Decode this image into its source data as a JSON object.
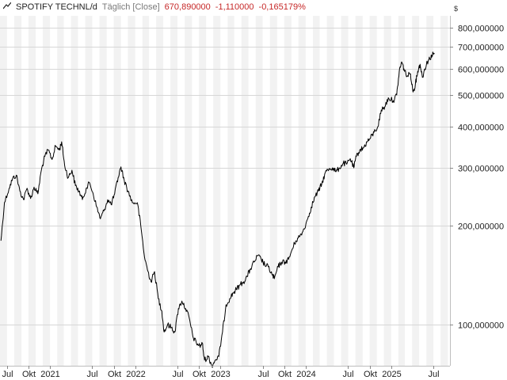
{
  "header": {
    "icon": "line-chart-icon",
    "symbol": "SPOTIFY TECHNL/d",
    "mode": "Täglich [Close]",
    "last": "670,890000",
    "change": "-1,110000",
    "change_pct": "-0,165179%",
    "change_color": "#c62828"
  },
  "chart_data": {
    "type": "line",
    "y_scale": "log",
    "currency": "$",
    "ylim": [
      75,
      870
    ],
    "xlim": [
      "2020-06-01",
      "2025-09-10"
    ],
    "grid": true,
    "line_color": "#000000",
    "y_ticks": [
      {
        "value": 100,
        "label": "100,000000"
      },
      {
        "value": 200,
        "label": "200,000000"
      },
      {
        "value": 300,
        "label": "300,000000"
      },
      {
        "value": 400,
        "label": "400,000000"
      },
      {
        "value": 500,
        "label": "500,000000"
      },
      {
        "value": 600,
        "label": "600,000000"
      },
      {
        "value": 700,
        "label": "700,000000"
      },
      {
        "value": 800,
        "label": "800,000000"
      }
    ],
    "x_ticks": [
      {
        "date": "2020-07-01",
        "label": "Jul"
      },
      {
        "date": "2020-10-01",
        "label": "Okt"
      },
      {
        "date": "2021-01-01",
        "label": "2021"
      },
      {
        "date": "2021-07-01",
        "label": "Jul"
      },
      {
        "date": "2021-10-01",
        "label": "Okt"
      },
      {
        "date": "2022-01-01",
        "label": "2022"
      },
      {
        "date": "2022-07-01",
        "label": "Jul"
      },
      {
        "date": "2022-10-01",
        "label": "Okt"
      },
      {
        "date": "2023-01-01",
        "label": "2023"
      },
      {
        "date": "2023-07-01",
        "label": "Jul"
      },
      {
        "date": "2023-10-01",
        "label": "Okt"
      },
      {
        "date": "2024-01-01",
        "label": "2024"
      },
      {
        "date": "2024-07-01",
        "label": "Jul"
      },
      {
        "date": "2024-10-01",
        "label": "Okt"
      },
      {
        "date": "2025-01-01",
        "label": "2025"
      },
      {
        "date": "2025-07-01",
        "label": "Jul"
      }
    ],
    "series": [
      {
        "values": [
          [
            "2020-06-05",
            180
          ],
          [
            "2020-06-20",
            235
          ],
          [
            "2020-07-10",
            260
          ],
          [
            "2020-07-25",
            278
          ],
          [
            "2020-08-10",
            285
          ],
          [
            "2020-08-25",
            255
          ],
          [
            "2020-09-10",
            240
          ],
          [
            "2020-09-25",
            260
          ],
          [
            "2020-10-10",
            242
          ],
          [
            "2020-10-25",
            262
          ],
          [
            "2020-11-10",
            250
          ],
          [
            "2020-11-25",
            295
          ],
          [
            "2020-12-10",
            325
          ],
          [
            "2020-12-25",
            340
          ],
          [
            "2021-01-10",
            318
          ],
          [
            "2021-01-25",
            350
          ],
          [
            "2021-02-10",
            340
          ],
          [
            "2021-02-20",
            360
          ],
          [
            "2021-03-05",
            305
          ],
          [
            "2021-03-20",
            280
          ],
          [
            "2021-04-05",
            295
          ],
          [
            "2021-04-20",
            265
          ],
          [
            "2021-05-05",
            255
          ],
          [
            "2021-05-20",
            240
          ],
          [
            "2021-06-05",
            260
          ],
          [
            "2021-06-20",
            270
          ],
          [
            "2021-07-05",
            250
          ],
          [
            "2021-07-20",
            228
          ],
          [
            "2021-08-05",
            210
          ],
          [
            "2021-08-20",
            222
          ],
          [
            "2021-09-05",
            240
          ],
          [
            "2021-09-20",
            232
          ],
          [
            "2021-10-05",
            250
          ],
          [
            "2021-10-20",
            280
          ],
          [
            "2021-11-01",
            302
          ],
          [
            "2021-11-15",
            275
          ],
          [
            "2021-12-01",
            255
          ],
          [
            "2021-12-20",
            235
          ],
          [
            "2022-01-10",
            235
          ],
          [
            "2022-01-25",
            200
          ],
          [
            "2022-02-10",
            160
          ],
          [
            "2022-02-25",
            145
          ],
          [
            "2022-03-10",
            135
          ],
          [
            "2022-03-25",
            145
          ],
          [
            "2022-04-10",
            120
          ],
          [
            "2022-04-25",
            110
          ],
          [
            "2022-05-05",
            95
          ],
          [
            "2022-05-20",
            100
          ],
          [
            "2022-06-05",
            98
          ],
          [
            "2022-06-20",
            95
          ],
          [
            "2022-07-05",
            112
          ],
          [
            "2022-07-20",
            118
          ],
          [
            "2022-08-05",
            112
          ],
          [
            "2022-08-20",
            105
          ],
          [
            "2022-09-05",
            92
          ],
          [
            "2022-09-20",
            88
          ],
          [
            "2022-10-05",
            86
          ],
          [
            "2022-10-15",
            88
          ],
          [
            "2022-10-25",
            78
          ],
          [
            "2022-11-10",
            80
          ],
          [
            "2022-11-25",
            75
          ],
          [
            "2022-12-10",
            78
          ],
          [
            "2022-12-25",
            80
          ],
          [
            "2023-01-10",
            95
          ],
          [
            "2023-01-25",
            115
          ],
          [
            "2023-02-10",
            120
          ],
          [
            "2023-02-25",
            125
          ],
          [
            "2023-03-10",
            128
          ],
          [
            "2023-03-25",
            132
          ],
          [
            "2023-04-10",
            135
          ],
          [
            "2023-04-25",
            140
          ],
          [
            "2023-05-10",
            148
          ],
          [
            "2023-05-25",
            155
          ],
          [
            "2023-06-10",
            162
          ],
          [
            "2023-06-25",
            158
          ],
          [
            "2023-07-10",
            152
          ],
          [
            "2023-07-25",
            150
          ],
          [
            "2023-08-10",
            142
          ],
          [
            "2023-08-20",
            138
          ],
          [
            "2023-09-05",
            150
          ],
          [
            "2023-09-20",
            155
          ],
          [
            "2023-10-05",
            155
          ],
          [
            "2023-10-20",
            158
          ],
          [
            "2023-11-05",
            170
          ],
          [
            "2023-11-20",
            180
          ],
          [
            "2023-12-05",
            185
          ],
          [
            "2023-12-20",
            192
          ],
          [
            "2024-01-10",
            210
          ],
          [
            "2024-01-25",
            228
          ],
          [
            "2024-02-10",
            245
          ],
          [
            "2024-02-25",
            255
          ],
          [
            "2024-03-10",
            268
          ],
          [
            "2024-03-25",
            290
          ],
          [
            "2024-04-10",
            298
          ],
          [
            "2024-04-25",
            300
          ],
          [
            "2024-05-10",
            292
          ],
          [
            "2024-05-25",
            300
          ],
          [
            "2024-06-10",
            310
          ],
          [
            "2024-06-25",
            308
          ],
          [
            "2024-07-10",
            320
          ],
          [
            "2024-07-25",
            300
          ],
          [
            "2024-08-05",
            325
          ],
          [
            "2024-08-20",
            340
          ],
          [
            "2024-09-05",
            345
          ],
          [
            "2024-09-20",
            360
          ],
          [
            "2024-10-05",
            370
          ],
          [
            "2024-10-20",
            385
          ],
          [
            "2024-11-05",
            400
          ],
          [
            "2024-11-20",
            450
          ],
          [
            "2024-12-05",
            460
          ],
          [
            "2024-12-20",
            490
          ],
          [
            "2025-01-10",
            480
          ],
          [
            "2025-01-25",
            500
          ],
          [
            "2025-02-05",
            590
          ],
          [
            "2025-02-15",
            630
          ],
          [
            "2025-02-25",
            600
          ],
          [
            "2025-03-10",
            570
          ],
          [
            "2025-03-25",
            580
          ],
          [
            "2025-04-05",
            510
          ],
          [
            "2025-04-15",
            540
          ],
          [
            "2025-04-25",
            590
          ],
          [
            "2025-05-05",
            620
          ],
          [
            "2025-05-15",
            565
          ],
          [
            "2025-05-25",
            600
          ],
          [
            "2025-06-05",
            630
          ],
          [
            "2025-06-15",
            645
          ],
          [
            "2025-06-25",
            660
          ],
          [
            "2025-07-05",
            670.89
          ]
        ]
      }
    ]
  }
}
